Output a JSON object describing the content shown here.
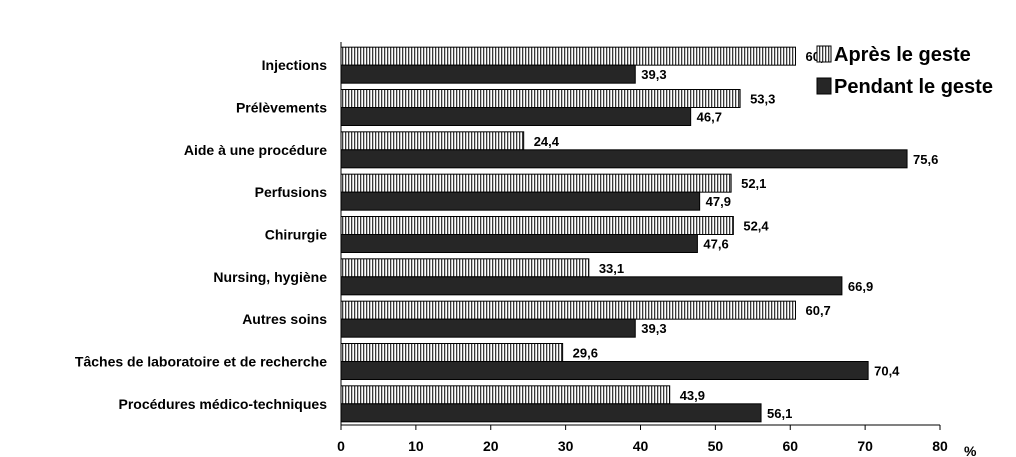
{
  "chart_data": {
    "type": "bar",
    "orientation": "horizontal",
    "categories": [
      "Injections",
      "Prélèvements",
      "Aide à une procédure",
      "Perfusions",
      "Chirurgie",
      "Nursing, hygiène",
      "Autres soins",
      "Tâches de laboratoire et de recherche",
      "Procédures médico-techniques"
    ],
    "series": [
      {
        "name": "Après le geste",
        "values": [
          60.7,
          53.3,
          24.4,
          52.1,
          52.4,
          33.1,
          60.7,
          29.6,
          43.9
        ],
        "labels": [
          "60,7",
          "53,3",
          "24,4",
          "52,1",
          "52,4",
          "33,1",
          "60,7",
          "29,6",
          "43,9"
        ],
        "fill": "hatched"
      },
      {
        "name": "Pendant le geste",
        "values": [
          39.3,
          46.7,
          75.6,
          47.9,
          47.6,
          66.9,
          39.3,
          70.4,
          56.1
        ],
        "labels": [
          "39,3",
          "46,7",
          "75,6",
          "47,9",
          "47,6",
          "66,9",
          "39,3",
          "70,4",
          "56,1"
        ],
        "fill": "#262626"
      }
    ],
    "xlim": [
      0,
      80
    ],
    "xticks": [
      "0",
      "10",
      "20",
      "30",
      "40",
      "50",
      "60",
      "70",
      "80"
    ],
    "xunit": "%",
    "legend_position": "top-right",
    "grid": false
  }
}
